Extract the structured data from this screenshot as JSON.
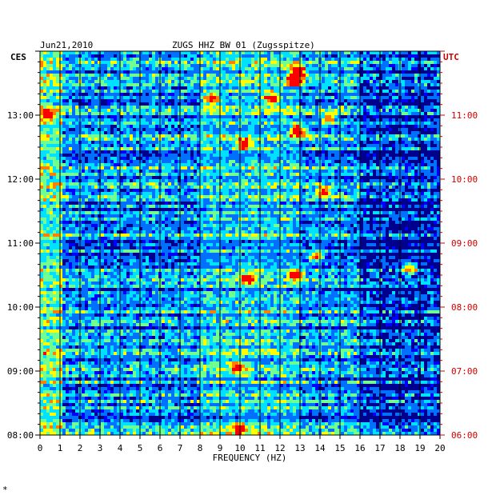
{
  "chart_data": {
    "type": "heatmap",
    "title": "ZUGS HHZ BW 01 (Zugsspitze)",
    "date": "Jun21,2010",
    "left_timezone": "CES",
    "right_timezone": "UTC",
    "xlabel": "FREQUENCY (HZ)",
    "xlim": [
      0,
      20
    ],
    "x_ticks": [
      "0",
      "1",
      "2",
      "3",
      "4",
      "5",
      "6",
      "7",
      "8",
      "9",
      "10",
      "11",
      "12",
      "13",
      "14",
      "15",
      "16",
      "17",
      "18",
      "19",
      "20"
    ],
    "y_ticks_left": [
      "08:00",
      "09:00",
      "10:00",
      "11:00",
      "12:00",
      "13:00"
    ],
    "y_ticks_right": [
      "06:00",
      "07:00",
      "08:00",
      "09:00",
      "10:00",
      "11:00"
    ],
    "time_range_hours_left": [
      8.0,
      14.0
    ],
    "grid": true,
    "colormap": [
      "#00008f",
      "#0000ff",
      "#0070ff",
      "#00e0ff",
      "#70ff90",
      "#ffff00",
      "#ff8000",
      "#ff0000"
    ],
    "hot_spots": [
      {
        "freq": 12.9,
        "hour": 13.7,
        "level": 0.95
      },
      {
        "freq": 12.8,
        "hour": 13.55,
        "level": 0.9
      },
      {
        "freq": 12.9,
        "hour": 12.75,
        "level": 0.85
      },
      {
        "freq": 11.6,
        "hour": 13.25,
        "level": 0.8
      },
      {
        "freq": 8.6,
        "hour": 13.25,
        "level": 0.75
      },
      {
        "freq": 10.4,
        "hour": 10.45,
        "level": 0.8
      },
      {
        "freq": 12.8,
        "hour": 10.5,
        "level": 0.75
      },
      {
        "freq": 10.2,
        "hour": 12.55,
        "level": 0.7
      },
      {
        "freq": 14.2,
        "hour": 11.8,
        "level": 0.7
      },
      {
        "freq": 10.0,
        "hour": 8.1,
        "level": 0.7
      },
      {
        "freq": 0.4,
        "hour": 13.0,
        "level": 0.7
      },
      {
        "freq": 9.9,
        "hour": 9.05,
        "level": 0.65
      },
      {
        "freq": 18.5,
        "hour": 10.6,
        "level": 0.6
      },
      {
        "freq": 14.4,
        "hour": 12.95,
        "level": 0.6
      },
      {
        "freq": 13.8,
        "hour": 10.8,
        "level": 0.65
      }
    ]
  },
  "footer_mark": "*"
}
